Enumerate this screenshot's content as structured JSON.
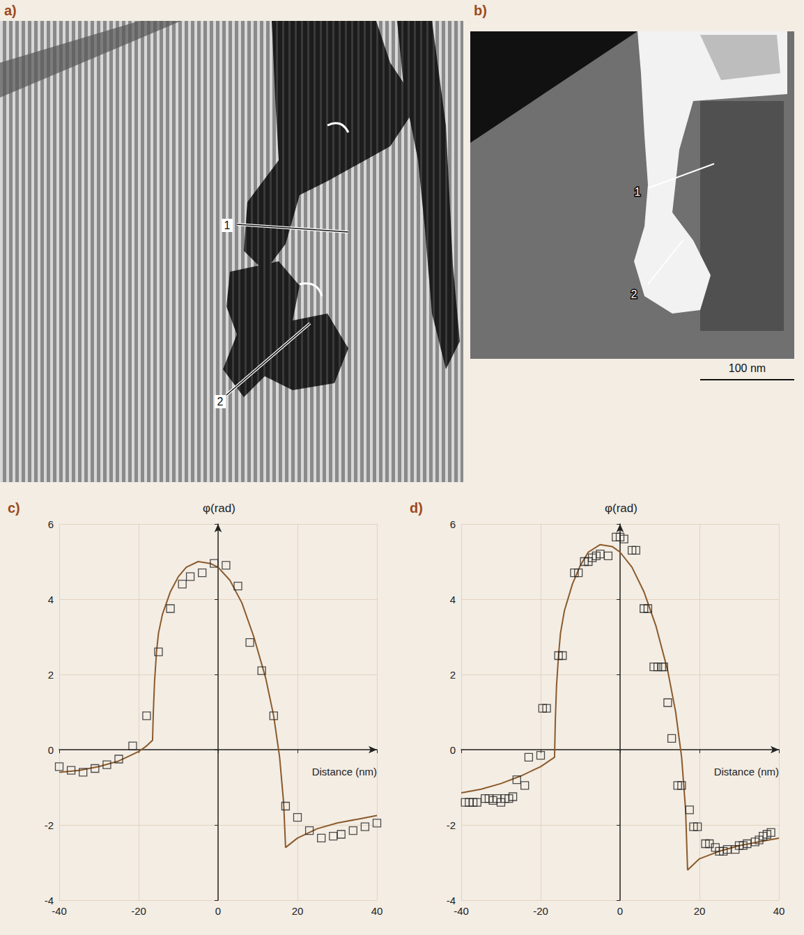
{
  "panels": [
    {
      "panel": "a)",
      "labels": [
        "1",
        "2"
      ]
    },
    {
      "panel": "b)",
      "labels": [
        "1",
        "2"
      ],
      "scale_bar": "100 nm"
    }
  ],
  "chart_data": [
    {
      "panel": "c)",
      "type": "line",
      "x_label": "Distance (nm)",
      "y_label": "φ(rad)",
      "xlim": [
        -40,
        40
      ],
      "xticks": [
        -40,
        -20,
        0,
        20,
        40
      ],
      "ylim": [
        -4,
        6
      ],
      "yticks": [
        -4,
        -2,
        0,
        2,
        4,
        6
      ],
      "grid": true,
      "series": [
        {
          "type": "line",
          "color": "#8b5a2b",
          "line_style": "solid",
          "x": [
            -40,
            -35,
            -30,
            -25,
            -22,
            -20,
            -18,
            -16.5,
            -16.3,
            -16,
            -15.5,
            -15,
            -14,
            -12,
            -10,
            -8,
            -5,
            -2,
            0,
            3,
            6,
            9,
            12,
            14,
            15.5,
            16.5,
            17,
            20,
            25,
            30,
            35,
            40
          ],
          "values": [
            -0.6,
            -0.55,
            -0.45,
            -0.3,
            -0.15,
            -0.05,
            0.1,
            0.25,
            1.0,
            1.8,
            2.6,
            3.1,
            3.6,
            4.2,
            4.6,
            4.85,
            5.0,
            4.95,
            4.85,
            4.5,
            3.9,
            3.0,
            1.9,
            0.9,
            -0.2,
            -1.4,
            -2.6,
            -2.35,
            -2.1,
            -1.95,
            -1.85,
            -1.75
          ]
        },
        {
          "type": "scatter",
          "color": "#222222",
          "marker": "square",
          "x": [
            -40,
            -37,
            -34,
            -31,
            -28,
            -25,
            -21.5,
            -18,
            -15,
            -12,
            -9,
            -7,
            -4,
            -1,
            2,
            5,
            8,
            11,
            14,
            17,
            20,
            23,
            26,
            29,
            31,
            34,
            37,
            40
          ],
          "values": [
            -0.45,
            -0.55,
            -0.6,
            -0.5,
            -0.4,
            -0.25,
            0.1,
            0.9,
            2.6,
            3.75,
            4.4,
            4.6,
            4.7,
            4.95,
            4.9,
            4.35,
            2.85,
            2.1,
            0.9,
            -1.5,
            -1.8,
            -2.15,
            -2.35,
            -2.3,
            -2.25,
            -2.15,
            -2.05,
            -1.95
          ]
        }
      ]
    },
    {
      "panel": "d)",
      "type": "line",
      "x_label": "Distance (nm)",
      "y_label": "φ(rad)",
      "xlim": [
        -40,
        40
      ],
      "xticks": [
        -40,
        -20,
        0,
        20,
        40
      ],
      "ylim": [
        -4,
        6
      ],
      "yticks": [
        -4,
        -2,
        0,
        2,
        4,
        6
      ],
      "grid": true,
      "series": [
        {
          "type": "line",
          "color": "#8b5a2b",
          "line_style": "solid",
          "x": [
            -40,
            -35,
            -30,
            -25,
            -20,
            -16.5,
            -16.3,
            -16,
            -15.5,
            -15,
            -14,
            -12,
            -10,
            -8,
            -5,
            -2,
            0,
            3,
            6,
            9,
            12,
            14,
            15.5,
            16.5,
            17,
            20,
            25,
            30,
            35,
            40
          ],
          "values": [
            -1.15,
            -1.05,
            -0.9,
            -0.7,
            -0.45,
            -0.2,
            0.8,
            1.7,
            2.5,
            3.1,
            3.7,
            4.4,
            4.9,
            5.25,
            5.45,
            5.4,
            5.25,
            4.85,
            4.2,
            3.3,
            2.1,
            1.0,
            -0.2,
            -1.6,
            -3.2,
            -2.9,
            -2.7,
            -2.55,
            -2.45,
            -2.35
          ]
        },
        {
          "type": "scatter",
          "color": "#222222",
          "marker": "square",
          "x": [
            -39,
            -38,
            -37,
            -36,
            -34,
            -33,
            -32,
            -31,
            -30,
            -29,
            -28,
            -27,
            -26,
            -24,
            -23,
            -20,
            -19.5,
            -18.5,
            -15.5,
            -14.5,
            -11.5,
            -10.5,
            -9,
            -8,
            -7,
            -6,
            -5,
            -3,
            -1,
            0,
            1,
            3,
            4,
            6,
            7,
            8.5,
            9.5,
            10.5,
            11,
            12,
            13,
            14.5,
            15.5,
            17.5,
            18.5,
            19.5,
            21.5,
            22.5,
            24,
            25,
            26,
            27,
            29,
            30,
            31,
            32,
            34,
            35,
            36,
            37,
            38
          ],
          "values": [
            -1.4,
            -1.4,
            -1.4,
            -1.4,
            -1.3,
            -1.3,
            -1.35,
            -1.3,
            -1.4,
            -1.3,
            -1.3,
            -1.25,
            -0.8,
            -0.95,
            -0.2,
            -0.15,
            1.1,
            1.1,
            2.5,
            2.5,
            4.7,
            4.7,
            5.0,
            5.0,
            5.1,
            5.15,
            5.2,
            5.15,
            5.65,
            5.65,
            5.6,
            5.3,
            5.3,
            3.75,
            3.75,
            2.2,
            2.2,
            2.2,
            2.2,
            1.25,
            0.3,
            -0.95,
            -0.95,
            -1.6,
            -2.05,
            -2.05,
            -2.5,
            -2.5,
            -2.6,
            -2.7,
            -2.7,
            -2.65,
            -2.65,
            -2.55,
            -2.55,
            -2.5,
            -2.45,
            -2.4,
            -2.3,
            -2.25,
            -2.2
          ]
        }
      ]
    }
  ]
}
